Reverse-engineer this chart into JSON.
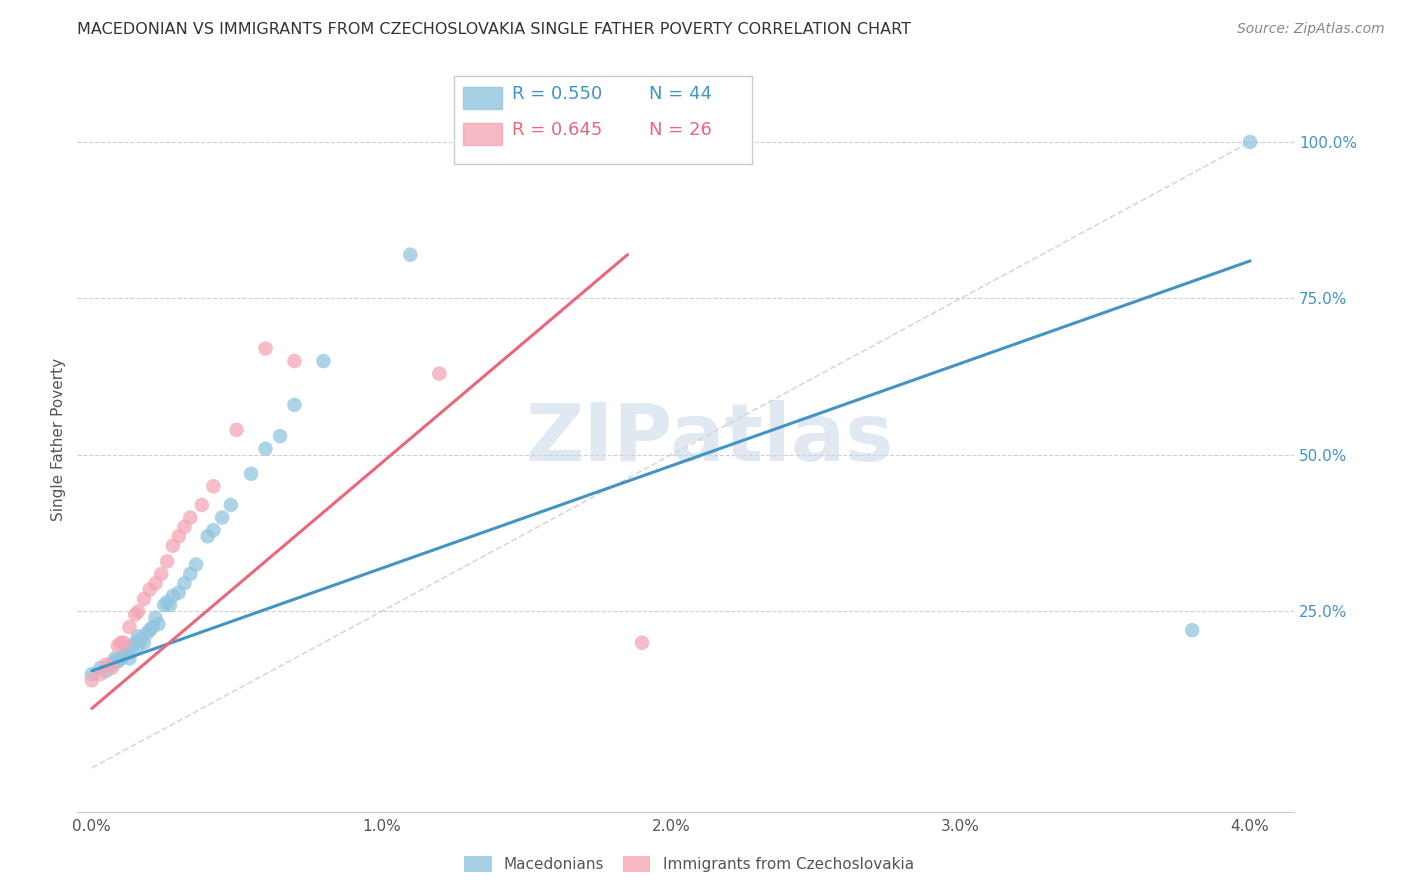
{
  "title": "MACEDONIAN VS IMMIGRANTS FROM CZECHOSLOVAKIA SINGLE FATHER POVERTY CORRELATION CHART",
  "source": "Source: ZipAtlas.com",
  "xlabel_ticks": [
    "0.0%",
    "1.0%",
    "2.0%",
    "3.0%",
    "4.0%"
  ],
  "xlabel_tick_vals": [
    0.0,
    0.01,
    0.02,
    0.03,
    0.04
  ],
  "ylabel": "Single Father Poverty",
  "right_ytick_labels": [
    "100.0%",
    "75.0%",
    "50.0%",
    "25.0%"
  ],
  "right_ytick_vals": [
    1.0,
    0.75,
    0.5,
    0.25
  ],
  "xlim": [
    -0.0005,
    0.0415
  ],
  "ylim": [
    -0.07,
    1.12
  ],
  "legend_blue_r": "R = 0.550",
  "legend_blue_n": "N = 44",
  "legend_pink_r": "R = 0.645",
  "legend_pink_n": "N = 26",
  "legend_label_blue": "Macedonians",
  "legend_label_pink": "Immigrants from Czechoslovakia",
  "blue_color": "#92c5de",
  "pink_color": "#f4a6b5",
  "blue_line_color": "#4393c3",
  "pink_line_color": "#e8687a",
  "diag_line_color": "#c8c8c8",
  "watermark_text": "ZIPatlas",
  "blue_scatter_x": [
    0.0,
    0.0003,
    0.0005,
    0.0007,
    0.0008,
    0.0008,
    0.0009,
    0.001,
    0.001,
    0.0011,
    0.0012,
    0.0013,
    0.0013,
    0.0014,
    0.0015,
    0.0016,
    0.0016,
    0.0017,
    0.0018,
    0.0019,
    0.002,
    0.0021,
    0.0022,
    0.0023,
    0.0025,
    0.0026,
    0.0027,
    0.0028,
    0.003,
    0.0032,
    0.0034,
    0.0036,
    0.004,
    0.0042,
    0.0045,
    0.0048,
    0.0055,
    0.006,
    0.0065,
    0.007,
    0.008,
    0.011,
    0.038,
    0.04
  ],
  "blue_scatter_y": [
    0.15,
    0.16,
    0.155,
    0.165,
    0.17,
    0.175,
    0.17,
    0.175,
    0.175,
    0.18,
    0.185,
    0.185,
    0.175,
    0.195,
    0.2,
    0.21,
    0.195,
    0.205,
    0.2,
    0.215,
    0.22,
    0.225,
    0.24,
    0.23,
    0.26,
    0.265,
    0.26,
    0.275,
    0.28,
    0.295,
    0.31,
    0.325,
    0.37,
    0.38,
    0.4,
    0.42,
    0.47,
    0.51,
    0.53,
    0.58,
    0.65,
    0.82,
    0.22,
    1.0
  ],
  "pink_scatter_x": [
    0.0,
    0.0003,
    0.0005,
    0.0007,
    0.0009,
    0.001,
    0.0011,
    0.0013,
    0.0015,
    0.0016,
    0.0018,
    0.002,
    0.0022,
    0.0024,
    0.0026,
    0.0028,
    0.003,
    0.0032,
    0.0034,
    0.0038,
    0.0042,
    0.005,
    0.006,
    0.007,
    0.012,
    0.019
  ],
  "pink_scatter_y": [
    0.14,
    0.15,
    0.165,
    0.16,
    0.195,
    0.2,
    0.2,
    0.225,
    0.245,
    0.25,
    0.27,
    0.285,
    0.295,
    0.31,
    0.33,
    0.355,
    0.37,
    0.385,
    0.4,
    0.42,
    0.45,
    0.54,
    0.67,
    0.65,
    0.63,
    0.2
  ],
  "blue_line_x": [
    0.0,
    0.04
  ],
  "blue_line_y": [
    0.155,
    0.81
  ],
  "pink_line_x": [
    0.0,
    0.0185
  ],
  "pink_line_y": [
    0.095,
    0.82
  ],
  "diag_line_x": [
    0.0,
    0.04
  ],
  "diag_line_y": [
    0.0,
    1.0
  ]
}
